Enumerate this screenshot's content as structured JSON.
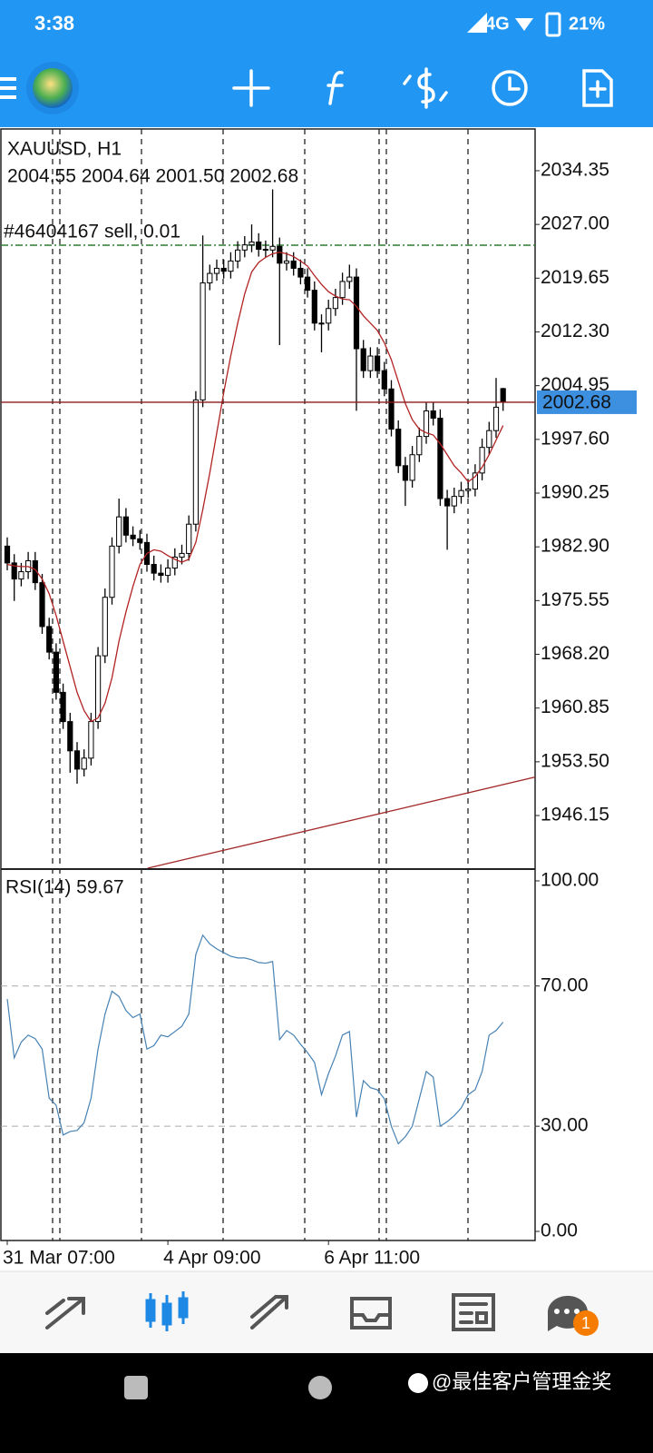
{
  "status_bar": {
    "time": "3:38",
    "network": "4G",
    "battery": "21%"
  },
  "chart_data": [
    {
      "type": "candlestick",
      "title": "XAUUSD, H1",
      "subtitle": "2004.55 2004.64 2001.50 2002.68",
      "categories": [
        "31 Mar 07:00",
        null,
        null,
        null,
        null,
        null,
        null,
        null,
        null,
        null,
        null,
        null,
        null,
        null,
        null,
        null,
        null,
        null,
        null,
        null,
        null,
        null,
        null,
        "4 Apr 09:00",
        null,
        null,
        null,
        null,
        null,
        null,
        null,
        null,
        null,
        null,
        null,
        null,
        null,
        null,
        null,
        null,
        null,
        null,
        null,
        null,
        null,
        null,
        "6 Apr 11:00",
        null,
        null,
        null,
        null,
        null,
        null,
        null,
        null,
        null,
        null,
        null,
        null,
        null,
        null,
        null,
        null,
        null,
        null,
        null,
        null,
        null,
        null,
        null,
        null,
        null
      ],
      "open": [
        1983,
        1980.7,
        1978.5,
        1979.5,
        1981,
        1978,
        1972,
        1968.5,
        1963,
        1959,
        1955,
        1952.5,
        1954,
        1959,
        1968,
        1976,
        1983,
        1987,
        1984.5,
        1984,
        1983.5,
        1980.5,
        1979.3,
        1979,
        1980,
        1981.5,
        1982,
        1986,
        2003,
        2019,
        2020.3,
        2021,
        2020.6,
        2022,
        2023.5,
        2024.2,
        2024.6,
        2023.6,
        2023.5,
        2024,
        2021.7,
        2022,
        2021,
        2019.8,
        2018,
        2013.5,
        2013.5,
        2015.5,
        2017,
        2019.2,
        2019.8,
        2010,
        2007,
        2009,
        2007,
        2004.5,
        1999,
        1994,
        1992,
        1995.5,
        1998,
        2001.5,
        2000.5,
        1989.5,
        1988.5,
        1989.8,
        1990.6,
        1990.8,
        1993,
        1996.5,
        1998.8,
        2004.55
      ],
      "high": [
        1984.2,
        1981.9,
        1980.7,
        1982.2,
        1982.2,
        1979.2,
        1973.2,
        1969.7,
        1964.2,
        1960.2,
        1956.2,
        1955.2,
        1960.2,
        1969.2,
        1977.2,
        1984.2,
        1989.5,
        1988.2,
        1985.7,
        1985.2,
        1984.7,
        1981.7,
        1980.5,
        1981.2,
        1982.7,
        1983.2,
        1987.2,
        2004.2,
        2025.5,
        2021.5,
        2022.2,
        2022.2,
        2023.2,
        2024.7,
        2025.4,
        2027,
        2025.8,
        2024.8,
        2031.8,
        2025.2,
        2023.2,
        2023.2,
        2022.2,
        2021,
        2019.2,
        2014.7,
        2016.7,
        2018.2,
        2020.4,
        2021.5,
        2021,
        2011.2,
        2010.2,
        2010.2,
        2008.2,
        2005.7,
        2000.2,
        1995.2,
        1996.7,
        1999.2,
        2002.7,
        2002.7,
        2001.7,
        1990.7,
        1991,
        1991.8,
        1992,
        1994.2,
        1997.7,
        2000,
        2006,
        2004.64
      ],
      "low": [
        1979.7,
        1975.5,
        1977.5,
        1978.5,
        1977,
        1971,
        1967.5,
        1962,
        1958,
        1952,
        1950.5,
        1951.5,
        1953,
        1958,
        1967,
        1975,
        1982,
        1983.5,
        1983,
        1982.5,
        1979.5,
        1978.3,
        1978,
        1978,
        1979,
        1980.5,
        1981,
        1985,
        2002,
        2018,
        2019.3,
        2019.6,
        2019.6,
        2021,
        2022.5,
        2023.2,
        2022.6,
        2022.5,
        2022.5,
        2010.5,
        2020.7,
        2020,
        2018.8,
        2017,
        2012.5,
        2009.5,
        2012.5,
        2014.5,
        2016,
        2018.2,
        2001.5,
        2006,
        2006,
        2006,
        2003.5,
        1998,
        1993,
        1988.5,
        1991,
        1994.5,
        1997,
        1999.5,
        1988.5,
        1982.5,
        1987.5,
        1988.8,
        1989.6,
        1989.8,
        1992,
        1995.5,
        1997.8,
        2001.5
      ],
      "close": [
        1980.7,
        1978.5,
        1979.5,
        1981,
        1978,
        1972,
        1968.5,
        1963,
        1959,
        1955,
        1952.5,
        1954,
        1959,
        1968,
        1976,
        1983,
        1987,
        1984.5,
        1984,
        1983.5,
        1980.5,
        1979.3,
        1979,
        1980,
        1981.5,
        1982,
        1986,
        2003,
        2019,
        2020.3,
        2021,
        2020.6,
        2022,
        2023.5,
        2024.2,
        2024.6,
        2023.6,
        2023.5,
        2024,
        2021.7,
        2022,
        2021,
        2019.8,
        2018,
        2013.5,
        2013.5,
        2015.5,
        2017,
        2019.2,
        2019.8,
        2010,
        2007,
        2009,
        2007,
        2004.5,
        1999,
        1994,
        1992,
        1995.5,
        1998,
        2001.5,
        2000.5,
        1989.5,
        1988.5,
        1989.8,
        1990.6,
        1990.8,
        1993,
        1996.5,
        1998.8,
        2002,
        2002.68
      ],
      "up_color": "#ffffff",
      "down_color": "#000000",
      "candle_stroke": "#000000",
      "ma": {
        "color": "#b22222",
        "values": [
          1980.5,
          1980.3,
          1980.2,
          1980.2,
          1979.8,
          1978.5,
          1976.5,
          1973.5,
          1970,
          1966.5,
          1963,
          1960.5,
          1959,
          1959.5,
          1961.5,
          1965,
          1970,
          1974,
          1977.5,
          1980.5,
          1982,
          1982.5,
          1982.3,
          1981.7,
          1981.2,
          1980.8,
          1981.2,
          1983.5,
          1988,
          1993,
          1998.5,
          2004,
          2009,
          2013.5,
          2017.5,
          2020.5,
          2021.8,
          2022.5,
          2023,
          2023.2,
          2023,
          2022.6,
          2022,
          2021.3,
          2020,
          2018.8,
          2017.8,
          2017.2,
          2016.8,
          2016.7,
          2015.8,
          2014.5,
          2013.5,
          2012.5,
          2010.8,
          2008.5,
          2005.5,
          2002.5,
          2000.3,
          1999,
          1998.5,
          1998.2,
          1997,
          1995.5,
          1994,
          1993,
          1991.8,
          1992.5,
          1993.8,
          1995.5,
          1997.5,
          1999.5
        ]
      },
      "current_price": {
        "value": 2002.68,
        "color": "#8b1a1a",
        "tag_color": "#3d8fe0"
      },
      "order_line": {
        "label": "#46404167 sell, 0.01",
        "value": 2024.16,
        "color": "#2e7d32"
      },
      "trendline": {
        "x": [
          20.1,
          76
        ],
        "y": [
          1938.95,
          1951.5
        ],
        "color": "#a52a2a"
      },
      "ylim": [
        1938.95,
        2040.06
      ],
      "yticks": [
        {
          "value": 2034.35,
          "label": "2034.35"
        },
        {
          "value": 2027,
          "label": "2027.00"
        },
        {
          "value": 2019.65,
          "label": "2019.65"
        },
        {
          "value": 2012.3,
          "label": "2012.30"
        },
        {
          "value": 2004.95,
          "label": "2004.95"
        },
        {
          "value": 1997.6,
          "label": "1997.60"
        },
        {
          "value": 1990.25,
          "label": "1990.25"
        },
        {
          "value": 1982.9,
          "label": "1982.90"
        },
        {
          "value": 1975.55,
          "label": "1975.55"
        },
        {
          "value": 1968.2,
          "label": "1968.20"
        },
        {
          "value": 1960.85,
          "label": "1960.85"
        },
        {
          "value": 1953.5,
          "label": "1953.50"
        },
        {
          "value": 1946.15,
          "label": "1946.15"
        }
      ]
    },
    {
      "type": "line",
      "title": "RSI(14) 59.67",
      "series": [
        {
          "color": "#4682b4",
          "values": [
            66.3,
            49.5,
            54,
            56,
            55,
            52,
            38,
            36,
            27.5,
            28.5,
            28.8,
            31,
            38,
            52,
            62,
            68.5,
            67,
            63,
            61,
            62,
            52,
            53,
            56,
            55.5,
            57,
            58.5,
            62,
            79,
            84.5,
            82,
            80.6,
            79.5,
            78.5,
            78,
            78,
            77.5,
            76.7,
            76.5,
            77,
            54.7,
            57.3,
            56,
            53.4,
            51,
            48.2,
            39,
            45,
            50,
            56,
            57,
            32.6,
            43,
            41,
            40.4,
            37.8,
            30,
            25,
            27,
            30,
            37.8,
            45.6,
            44,
            30,
            31.3,
            33,
            35.2,
            39,
            40.4,
            45.6,
            56,
            57.3,
            59.67
          ]
        }
      ],
      "ylim": [
        -2.6,
        103.1
      ],
      "yticks": [
        {
          "value": 100,
          "label": "100.00"
        },
        {
          "value": 70,
          "label": "70.00"
        },
        {
          "value": 30,
          "label": "30.00"
        },
        {
          "value": 0,
          "label": "0.00"
        }
      ],
      "levels": [
        70,
        30
      ]
    }
  ],
  "notification_badge": "1",
  "watermark": "@最佳客户管理金奖"
}
